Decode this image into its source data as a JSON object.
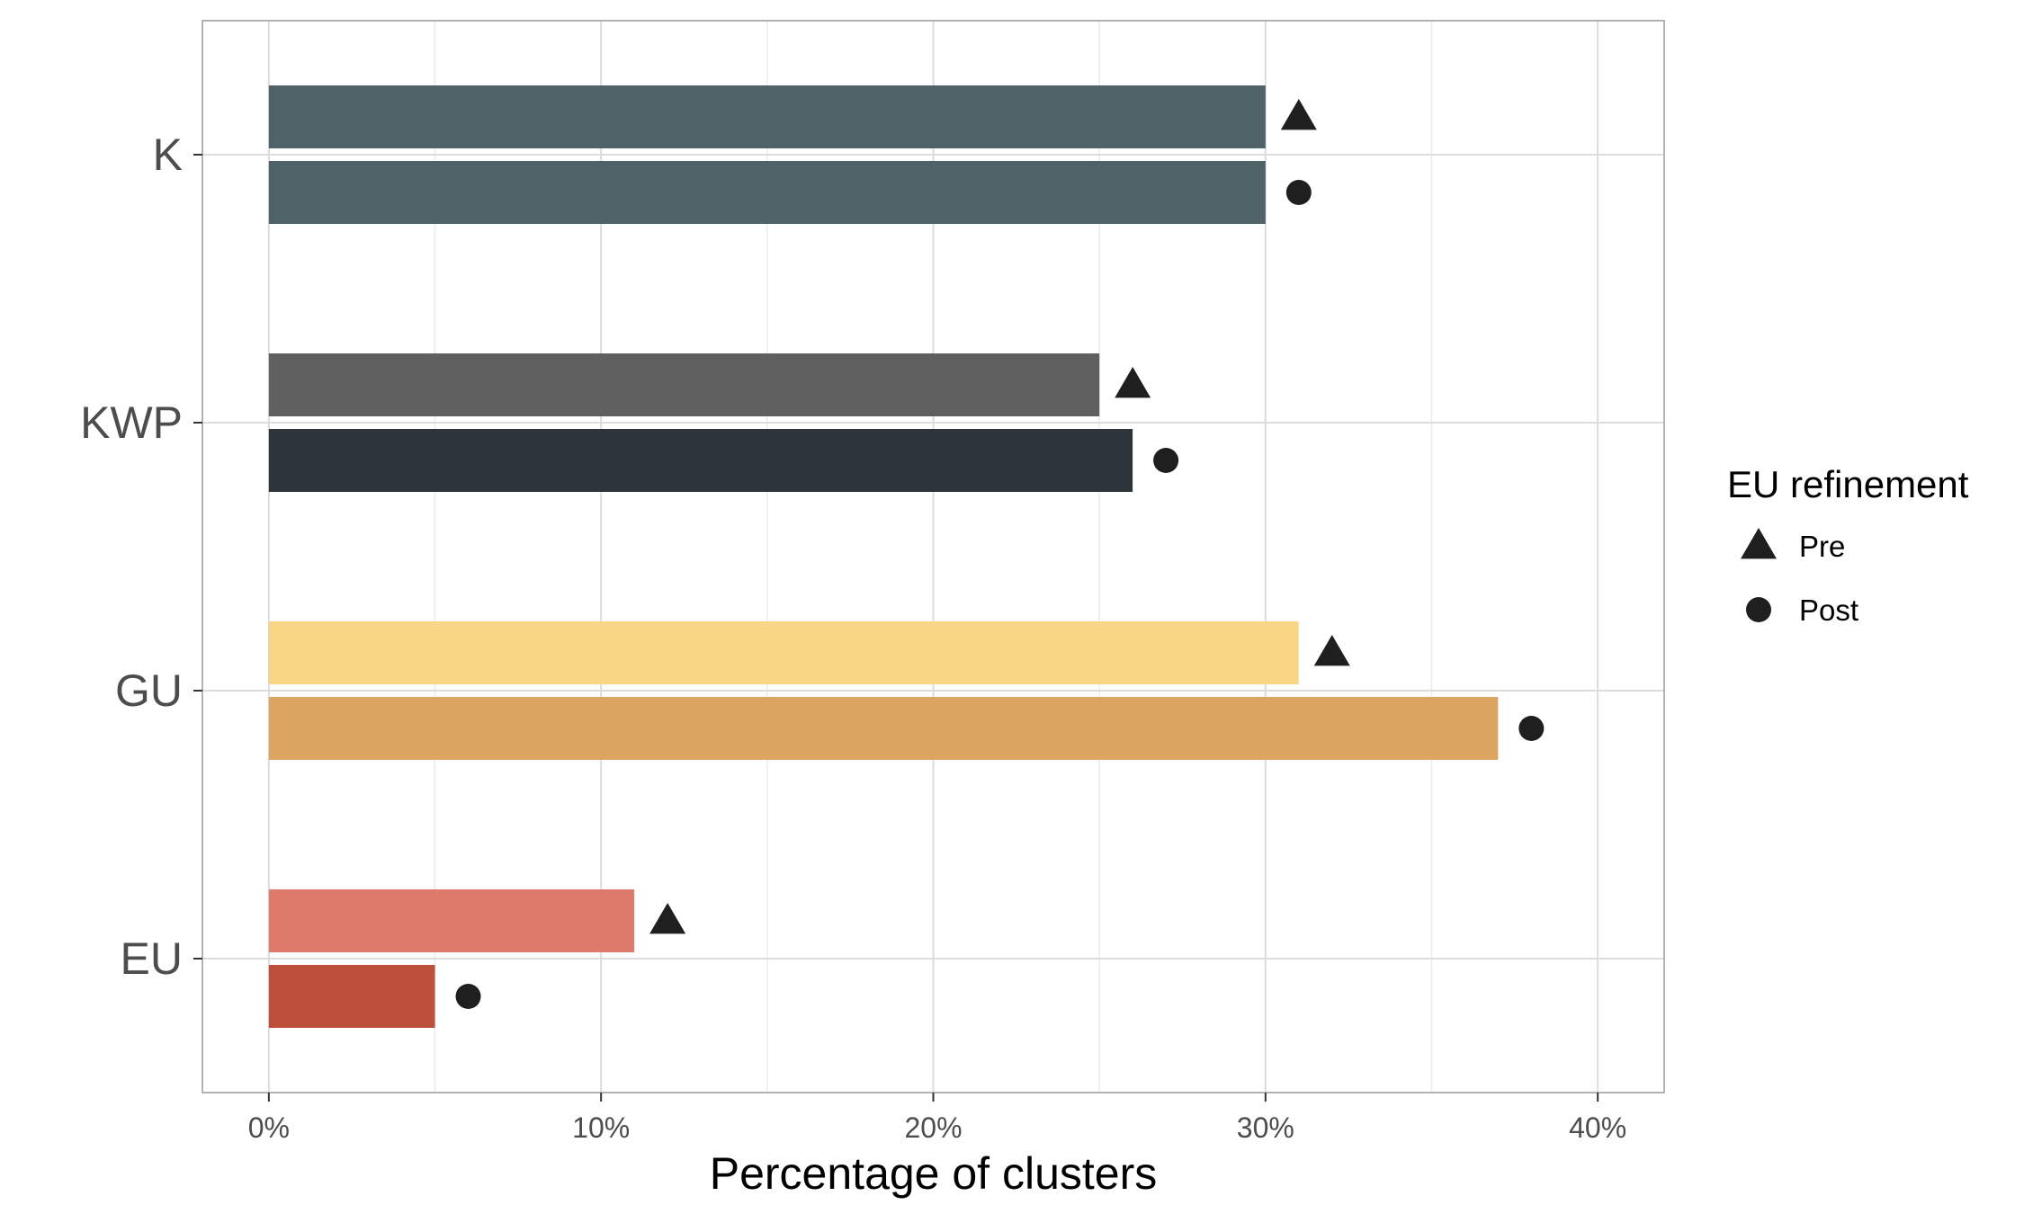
{
  "chart_data": {
    "type": "bar",
    "orientation": "horizontal",
    "categories": [
      "K",
      "KWP",
      "GU",
      "EU"
    ],
    "series": [
      {
        "name": "Pre",
        "marker": "triangle",
        "values": [
          30,
          25,
          31,
          11
        ],
        "colors": [
          "#4f6268",
          "#606060",
          "#f8d686",
          "#de7a6b"
        ]
      },
      {
        "name": "Post",
        "marker": "circle",
        "values": [
          30,
          26,
          37,
          5
        ],
        "colors": [
          "#4f6268",
          "#2e343b",
          "#dca662",
          "#bd4f3b"
        ]
      }
    ],
    "xlabel": "Percentage of clusters",
    "ylabel": "",
    "xlim": [
      -2,
      42
    ],
    "xticks": [
      0,
      10,
      20,
      30,
      40
    ],
    "xtick_labels": [
      "0%",
      "10%",
      "20%",
      "30%",
      "40%"
    ],
    "grid": true,
    "legend": {
      "title": "EU refinement",
      "placement": "right",
      "entries": [
        {
          "label": "Pre",
          "marker": "triangle"
        },
        {
          "label": "Post",
          "marker": "circle"
        }
      ]
    }
  }
}
